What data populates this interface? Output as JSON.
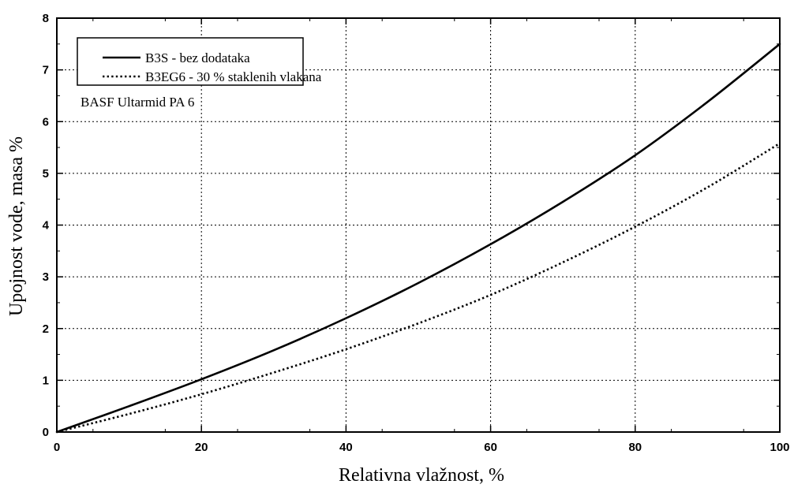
{
  "chart_data": {
    "type": "line",
    "title": "",
    "xlabel": "Relativna vlažnost, %",
    "ylabel": "Upojnost vode, masa %",
    "xlim": [
      0,
      100
    ],
    "ylim": [
      0,
      8
    ],
    "x_ticks": [
      "0",
      "20",
      "40",
      "60",
      "80",
      "100"
    ],
    "y_ticks": [
      "0",
      "1",
      "2",
      "3",
      "4",
      "5",
      "6",
      "7",
      "8"
    ],
    "grid": true,
    "legend_position": "top-left",
    "annotation": "BASF Ultarmid PA 6",
    "x": [
      0,
      10,
      20,
      30,
      40,
      50,
      60,
      70,
      80,
      90,
      100
    ],
    "series": [
      {
        "name": "B3S - bez dodataka",
        "line_style": "solid",
        "values": [
          0,
          0.5,
          1.02,
          1.58,
          2.2,
          2.88,
          3.63,
          4.45,
          5.35,
          6.38,
          7.5
        ]
      },
      {
        "name": "B3EG6 - 30 % staklenih vlakana",
        "line_style": "dotted",
        "values": [
          0,
          0.35,
          0.73,
          1.15,
          1.6,
          2.1,
          2.65,
          3.28,
          3.97,
          4.73,
          5.58
        ]
      }
    ]
  }
}
